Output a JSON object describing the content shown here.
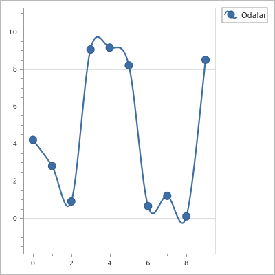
{
  "chart_data": {
    "type": "line",
    "smooth": true,
    "markers": true,
    "x": [
      0,
      1,
      2,
      3,
      4,
      5,
      6,
      7,
      8,
      9
    ],
    "series": [
      {
        "name": "Odalar",
        "values": [
          4.2,
          2.8,
          0.9,
          9.05,
          9.15,
          8.2,
          0.65,
          1.2,
          0.1,
          8.5
        ],
        "color": "#3d6fa6"
      }
    ],
    "xlim": [
      -0.5,
      9.5
    ],
    "ylim": [
      -1.9,
      11.3
    ],
    "xticks": [
      0,
      2,
      4,
      6,
      8
    ],
    "yticks": [
      0,
      2,
      4,
      6,
      8,
      10
    ],
    "xtick_labels": [
      "0",
      "2",
      "4",
      "6",
      "8"
    ],
    "ytick_labels": [
      "0",
      "2",
      "4",
      "6",
      "8",
      "10"
    ],
    "grid": {
      "horizontal": true,
      "vertical": false
    },
    "legend": {
      "position": "top-right",
      "label": "Odalar"
    },
    "title": "",
    "xlabel": "",
    "ylabel": ""
  }
}
